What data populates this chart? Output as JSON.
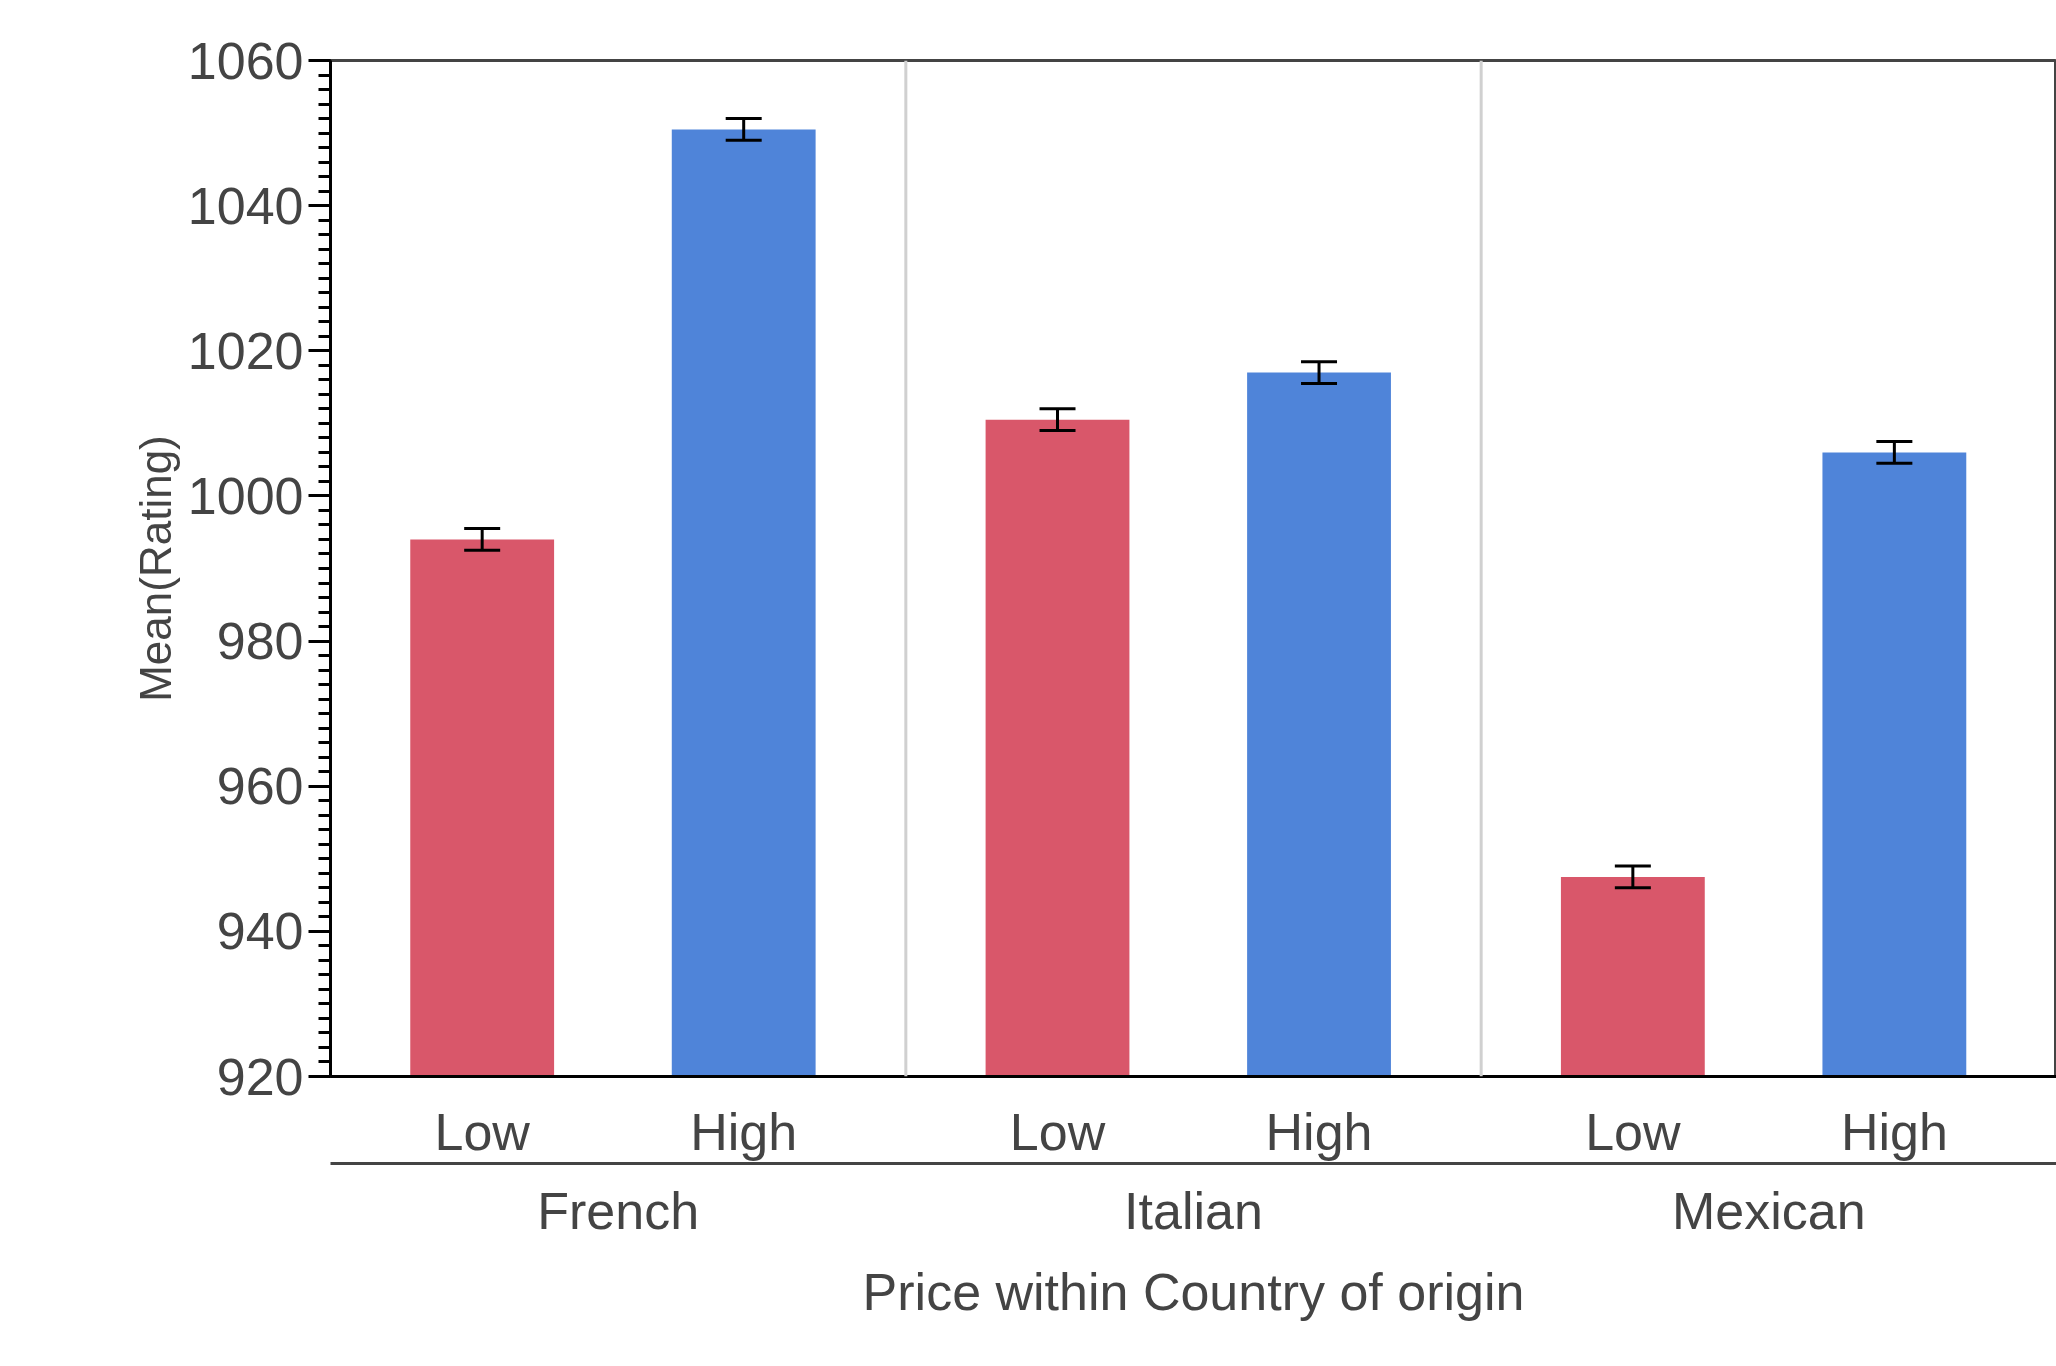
{
  "chart_data": {
    "type": "bar",
    "xlabel": "Price within Country of origin",
    "ylabel": "Mean(Rating)",
    "categories": [
      "Low",
      "High",
      "Low",
      "High",
      "Low",
      "High"
    ],
    "values": [
      994,
      1050.5,
      1010.5,
      1017,
      947.5,
      1006
    ],
    "colors": [
      "#d9576a",
      "#4f84d9",
      "#d9576a",
      "#4f84d9",
      "#d9576a",
      "#4f84d9"
    ],
    "errors": [
      1.5,
      1.5,
      1.5,
      1.5,
      1.5,
      1.5
    ],
    "annotations": [
      "French",
      "Italian",
      "Mexican"
    ],
    "ylim": [
      920,
      1060
    ],
    "yticks": [
      920,
      940,
      960,
      980,
      1000,
      1020,
      1040,
      1060
    ]
  }
}
